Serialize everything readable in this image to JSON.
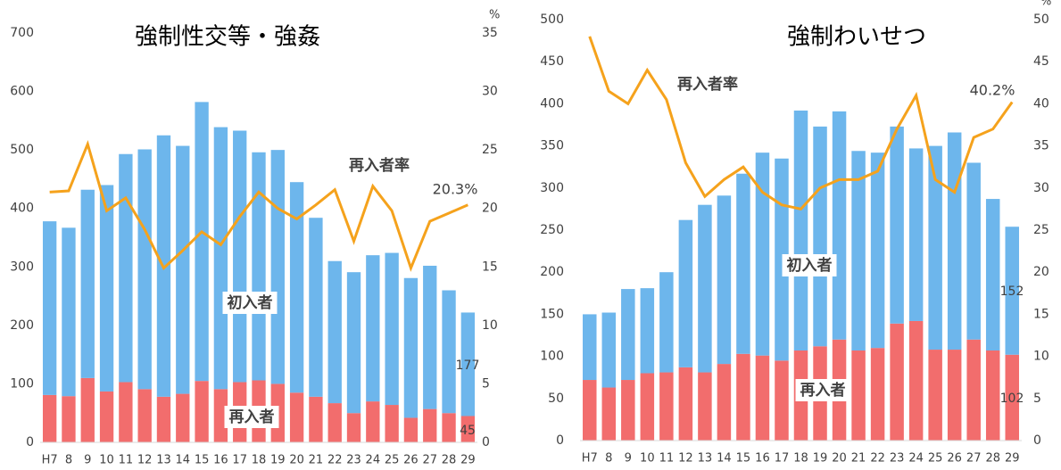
{
  "chart_data": [
    {
      "type": "combo",
      "title": "強制性交等・強姦",
      "categories": [
        "H7",
        "8",
        "9",
        "10",
        "11",
        "12",
        "13",
        "14",
        "15",
        "16",
        "17",
        "18",
        "19",
        "20",
        "21",
        "22",
        "23",
        "24",
        "25",
        "26",
        "27",
        "28",
        "29"
      ],
      "series": [
        {
          "name": "再入者",
          "color": "#f26d6d",
          "values": [
            81,
            79,
            110,
            87,
            103,
            91,
            78,
            83,
            105,
            91,
            103,
            106,
            100,
            85,
            78,
            67,
            50,
            70,
            64,
            42,
            57,
            50,
            45
          ]
        },
        {
          "name": "初入者",
          "color": "#6db6ec",
          "values": [
            297,
            288,
            322,
            353,
            390,
            410,
            447,
            424,
            477,
            448,
            430,
            390,
            400,
            360,
            306,
            243,
            241,
            250,
            260,
            239,
            245,
            210,
            177
          ]
        },
        {
          "name": "再入者率",
          "color": "#f5a21c",
          "axis": "y2",
          "values": [
            21.4,
            21.5,
            25.5,
            19.8,
            20.9,
            18.2,
            14.9,
            16.4,
            18.0,
            16.9,
            19.3,
            21.4,
            20.0,
            19.1,
            20.3,
            21.6,
            17.2,
            21.9,
            19.8,
            14.9,
            18.9,
            19.6,
            20.3
          ],
          "value_labels": [
            null,
            null,
            null,
            null,
            null,
            null,
            null,
            null,
            null,
            null,
            null,
            null,
            null,
            null,
            null,
            null,
            null,
            null,
            null,
            null,
            null,
            null,
            "20.3%"
          ]
        }
      ],
      "data_labels": "last",
      "ylim": [
        0,
        700
      ],
      "yticks": [
        0,
        100,
        200,
        300,
        400,
        500,
        600,
        700
      ],
      "y2lim": [
        0,
        35
      ],
      "y2ticks": [
        0,
        5,
        10,
        15,
        20,
        25,
        30,
        35
      ],
      "y2_label": "%"
    },
    {
      "type": "combo",
      "title": "強制わいせつ",
      "categories": [
        "H7",
        "8",
        "9",
        "10",
        "11",
        "12",
        "13",
        "14",
        "15",
        "16",
        "17",
        "18",
        "19",
        "20",
        "21",
        "22",
        "23",
        "24",
        "25",
        "26",
        "27",
        "28",
        "29"
      ],
      "series": [
        {
          "name": "再入者",
          "color": "#f26d6d",
          "values": [
            72,
            63,
            72,
            80,
            81,
            87,
            81,
            91,
            103,
            101,
            95,
            107,
            112,
            120,
            107,
            110,
            139,
            142,
            108,
            108,
            120,
            107,
            102
          ]
        },
        {
          "name": "初入者",
          "color": "#6db6ec",
          "values": [
            78,
            89,
            108,
            101,
            119,
            175,
            199,
            200,
            214,
            241,
            240,
            285,
            261,
            271,
            237,
            232,
            234,
            205,
            242,
            258,
            210,
            180,
            152
          ]
        },
        {
          "name": "再入者率",
          "color": "#f5a21c",
          "axis": "y2",
          "values": [
            48,
            41.5,
            40,
            44,
            40.5,
            33,
            29,
            31,
            32.5,
            29.5,
            28,
            27.5,
            30,
            31,
            31,
            32,
            37,
            41,
            31,
            29.5,
            36,
            37,
            40.2
          ],
          "value_labels": [
            null,
            null,
            null,
            null,
            null,
            null,
            null,
            null,
            null,
            null,
            null,
            null,
            null,
            null,
            null,
            null,
            null,
            null,
            null,
            null,
            null,
            null,
            "40.2%"
          ]
        }
      ],
      "data_labels": "last",
      "ylim": [
        0,
        500
      ],
      "yticks": [
        0,
        50,
        100,
        150,
        200,
        250,
        300,
        350,
        400,
        450,
        500
      ],
      "y2lim": [
        0,
        50
      ],
      "y2ticks": [
        0,
        5,
        10,
        15,
        20,
        25,
        30,
        35,
        40,
        45,
        50
      ],
      "y2_label": "%"
    }
  ]
}
